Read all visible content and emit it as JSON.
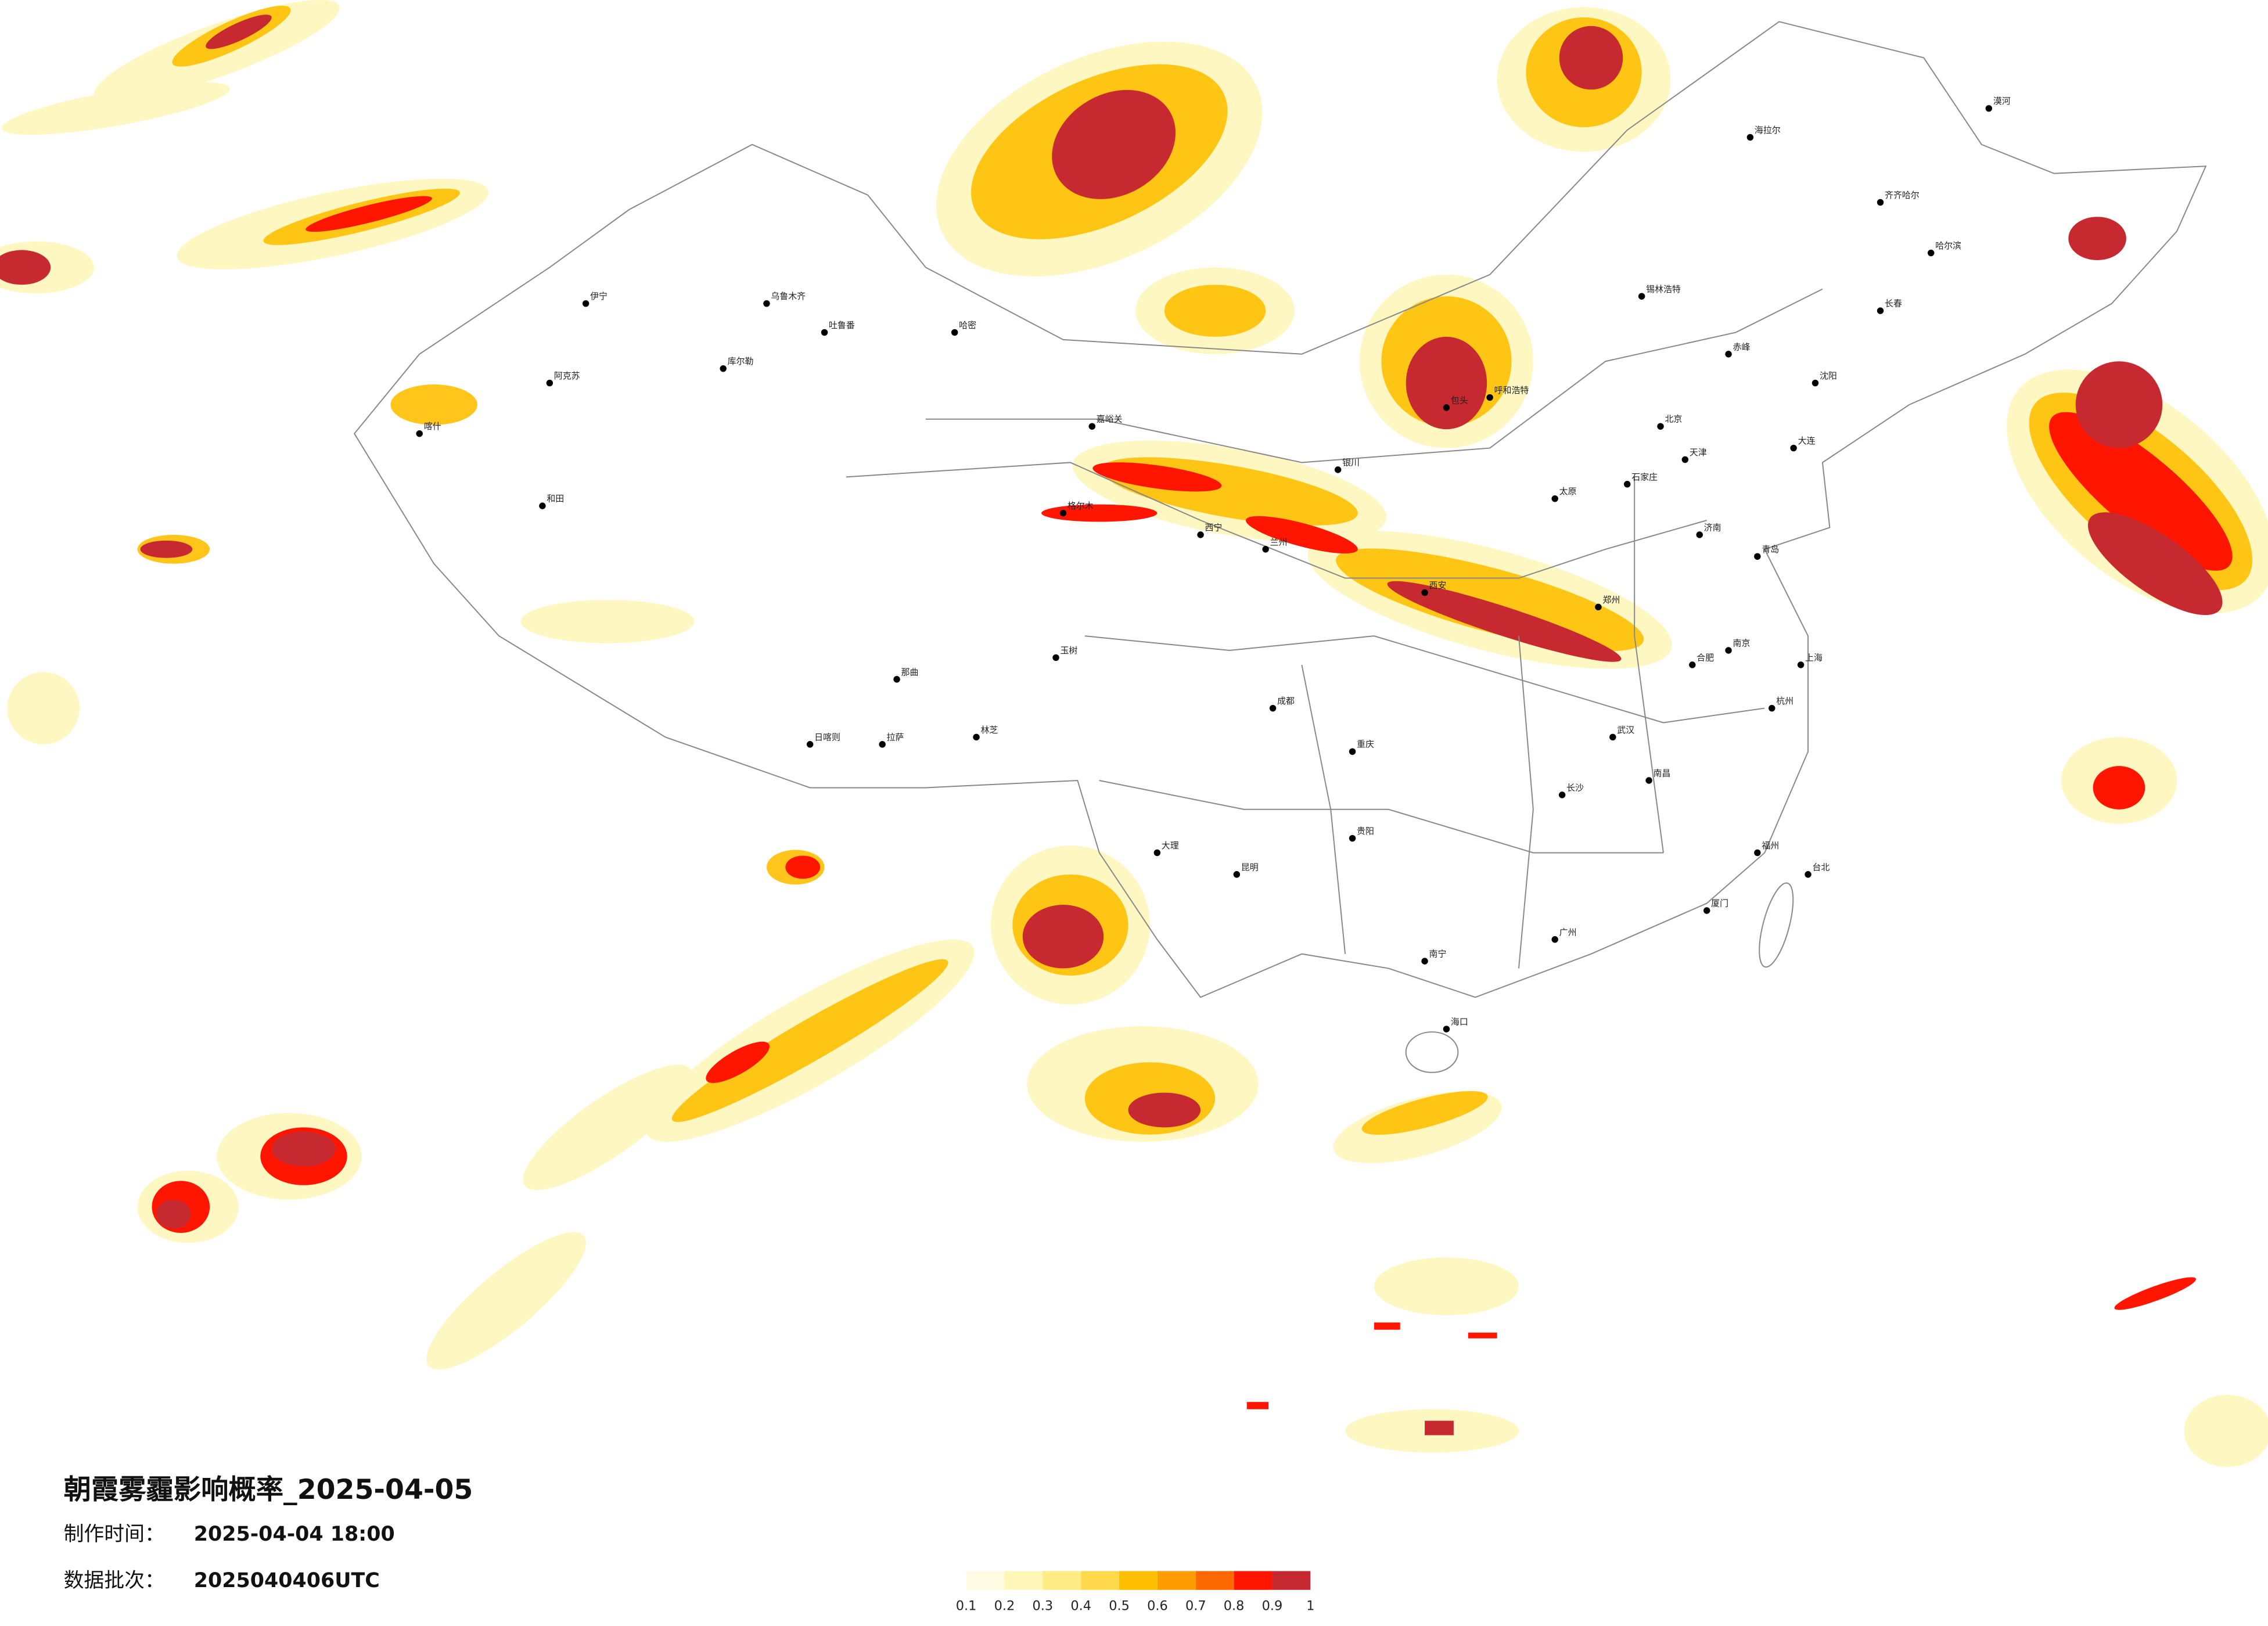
{
  "title": "朝霞雾霾影响概率_2025-04-05",
  "production_time": {
    "label": "制作时间：",
    "value": "2025-04-04 18:00"
  },
  "batch": {
    "label": "数据批次：",
    "value": "2025040406UTC"
  },
  "colorbar": {
    "colors": [
      "#fffbe3",
      "#fff6b8",
      "#ffec84",
      "#ffd84c",
      "#ffbf00",
      "#ff9c00",
      "#ff6a00",
      "#ff1500",
      "#c62a30"
    ],
    "ticks": [
      0.1,
      0.2,
      0.3,
      0.4,
      0.5,
      0.6,
      0.7,
      0.8,
      0.9,
      1
    ]
  },
  "cities": [
    "北京",
    "天津",
    "石家庄",
    "太原",
    "呼和浩特",
    "包头",
    "沈阳",
    "长春",
    "哈尔滨",
    "齐齐哈尔",
    "海拉尔",
    "济南",
    "青岛",
    "郑州",
    "西安",
    "兰州",
    "西宁",
    "银川",
    "武汉",
    "长沙",
    "南昌",
    "合肥",
    "南京",
    "上海",
    "杭州",
    "福州",
    "台北",
    "广州",
    "南宁",
    "海口",
    "贵阳",
    "昆明",
    "成都",
    "重庆",
    "拉萨",
    "乌鲁木齐",
    "伊宁",
    "喀什",
    "和田",
    "哈密",
    "格尔木",
    "玉树",
    "日喀则",
    "库尔勒",
    "阿克苏",
    "大连",
    "嘉峪关",
    "大理",
    "厦门",
    "漠河",
    "吐鲁番",
    "林芝",
    "那曲",
    "锡林浩特",
    "赤峰"
  ]
}
